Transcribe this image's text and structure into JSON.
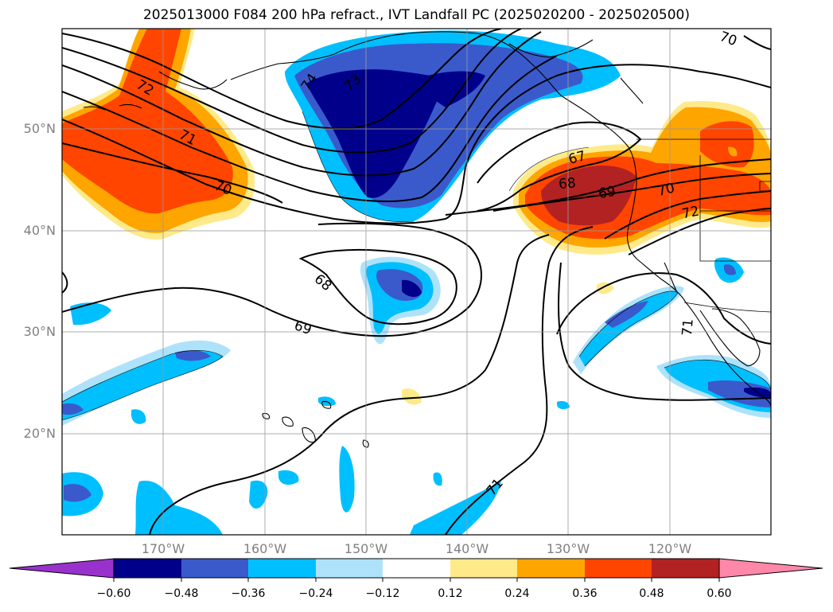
{
  "title": "2025013000 F084 200 hPa refract., IVT Landfall PC (2025020200 - 2025020500)",
  "colors": {
    "neg_extend": "#9932CC",
    "neg_060": "#00008B",
    "neg_048": "#3A5ACC",
    "neg_036": "#00BFFF",
    "neg_024": "#AEE2FA",
    "neutral": "#FFFFFF",
    "pos_012": "#FFEA8A",
    "pos_024": "#FFA500",
    "pos_036": "#FF4500",
    "pos_048": "#B22222",
    "pos_extend": "#FF88AA"
  },
  "map": {
    "lat_labels": [
      "50°N",
      "40°N",
      "30°N",
      "20°N"
    ],
    "lon_labels": [
      "170°W",
      "160°W",
      "150°W",
      "140°W",
      "130°W",
      "120°W"
    ],
    "contour_labels": [
      "70",
      "72",
      "71",
      "70",
      "74",
      "73",
      "67",
      "68",
      "69",
      "70",
      "72",
      "68",
      "69",
      "71",
      "71"
    ]
  },
  "colorbar": {
    "tick_labels": [
      "−0.60",
      "−0.48",
      "−0.36",
      "−0.24",
      "−0.12",
      "0.12",
      "0.24",
      "0.36",
      "0.48",
      "0.60"
    ]
  }
}
